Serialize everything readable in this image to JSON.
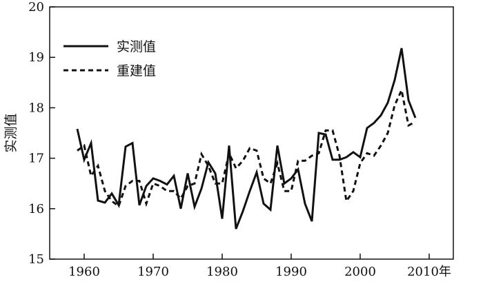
{
  "chart_data": {
    "type": "line",
    "ylabel": "实测值",
    "x_tick_labels": [
      "1960",
      "1970",
      "1980",
      "1990",
      "2000",
      "2010年"
    ],
    "y_tick_labels": [
      "15",
      "16",
      "17",
      "18",
      "19",
      "20"
    ],
    "xlim": [
      1955,
      2013.5
    ],
    "ylim": [
      15,
      20
    ],
    "legend_position": "top-left",
    "grid": false,
    "series": [
      {
        "name": "实测值",
        "style": "solid",
        "x": [
          1959,
          1960,
          1961,
          1962,
          1963,
          1964,
          1965,
          1966,
          1967,
          1968,
          1969,
          1970,
          1971,
          1972,
          1973,
          1974,
          1975,
          1976,
          1977,
          1978,
          1979,
          1980,
          1981,
          1982,
          1983,
          1984,
          1985,
          1986,
          1987,
          1988,
          1989,
          1990,
          1991,
          1992,
          1993,
          1994,
          1995,
          1996,
          1997,
          1998,
          1999,
          2000,
          2001,
          2002,
          2003,
          2004,
          2005,
          2006,
          2007,
          2008
        ],
        "values": [
          17.58,
          16.97,
          17.3,
          16.16,
          16.12,
          16.3,
          16.07,
          17.23,
          17.3,
          16.07,
          16.45,
          16.6,
          16.55,
          16.48,
          16.65,
          16.0,
          16.7,
          16.04,
          16.4,
          16.92,
          16.7,
          15.8,
          17.25,
          15.6,
          15.95,
          16.35,
          16.72,
          16.1,
          15.98,
          17.25,
          16.5,
          16.6,
          16.78,
          16.1,
          15.75,
          17.5,
          17.47,
          16.97,
          16.97,
          17.02,
          17.12,
          17.02,
          17.6,
          17.7,
          17.85,
          18.1,
          18.55,
          19.18,
          18.15,
          17.8
        ]
      },
      {
        "name": "重建值",
        "style": "dashed",
        "x": [
          1959,
          1960,
          1961,
          1962,
          1963,
          1964,
          1965,
          1966,
          1967,
          1968,
          1969,
          1970,
          1971,
          1972,
          1973,
          1974,
          1975,
          1976,
          1977,
          1978,
          1979,
          1980,
          1981,
          1982,
          1983,
          1984,
          1985,
          1986,
          1987,
          1988,
          1989,
          1990,
          1991,
          1992,
          1993,
          1994,
          1995,
          1996,
          1997,
          1998,
          1999,
          2000,
          2001,
          2002,
          2003,
          2004,
          2005,
          2006,
          2007,
          2008
        ],
        "values": [
          17.15,
          17.25,
          16.65,
          16.85,
          16.35,
          16.15,
          16.05,
          16.45,
          16.55,
          16.55,
          16.1,
          16.5,
          16.45,
          16.35,
          16.35,
          16.2,
          16.45,
          16.5,
          17.08,
          16.85,
          16.5,
          16.5,
          17.1,
          16.8,
          16.95,
          17.2,
          17.15,
          16.6,
          16.5,
          16.9,
          16.35,
          16.35,
          16.95,
          16.95,
          17.05,
          17.1,
          17.55,
          17.55,
          17.05,
          16.15,
          16.35,
          16.9,
          17.1,
          17.05,
          17.25,
          17.5,
          18.05,
          18.35,
          17.65,
          17.72
        ]
      }
    ]
  }
}
